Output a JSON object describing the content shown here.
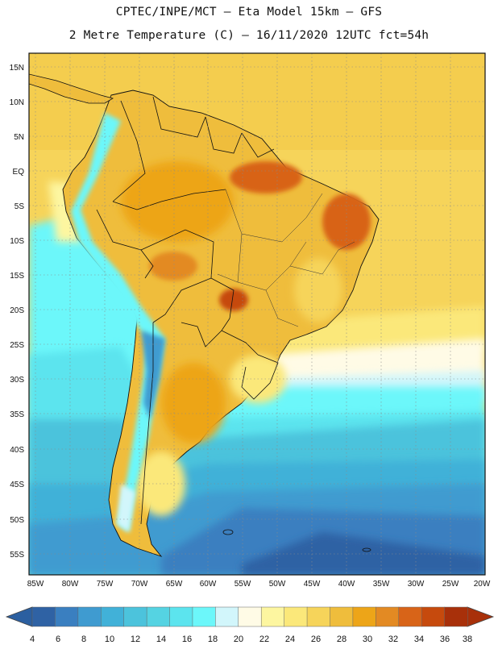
{
  "header": {
    "line1": "CPTEC/INPE/MCT –  Eta Model 15km – GFS",
    "line2": "2 Metre Temperature (C) – 16/11/2020 12UTC fct=54h"
  },
  "map": {
    "lat_labels": [
      "15N",
      "10N",
      "5N",
      "EQ",
      "5S",
      "10S",
      "15S",
      "20S",
      "25S",
      "30S",
      "35S",
      "40S",
      "45S",
      "50S",
      "55S"
    ],
    "lon_labels": [
      "85W",
      "80W",
      "75W",
      "70W",
      "65W",
      "60W",
      "55W",
      "50W",
      "45W",
      "40W",
      "35W",
      "30W",
      "25W",
      "20W"
    ],
    "region": "South America",
    "variable": "2 Metre Temperature (C)"
  },
  "colorbar": {
    "labels": [
      "4",
      "6",
      "8",
      "10",
      "12",
      "14",
      "16",
      "18",
      "20",
      "22",
      "24",
      "26",
      "28",
      "30",
      "32",
      "34",
      "36",
      "38"
    ],
    "colors": [
      "#2f62a4",
      "#3a7fc0",
      "#3f9bd0",
      "#41b1d8",
      "#4cc3dc",
      "#55d3e2",
      "#5ce4ee",
      "#6cf7fa",
      "#d2f6fb",
      "#fffbe6",
      "#fdf6a0",
      "#fbe87a",
      "#f6d45a",
      "#efbd3c",
      "#eda518",
      "#e38a23",
      "#d86418",
      "#c64a0d",
      "#a8300a"
    ],
    "low_color": "#2b5fa0",
    "high_color": "#a8300a"
  }
}
